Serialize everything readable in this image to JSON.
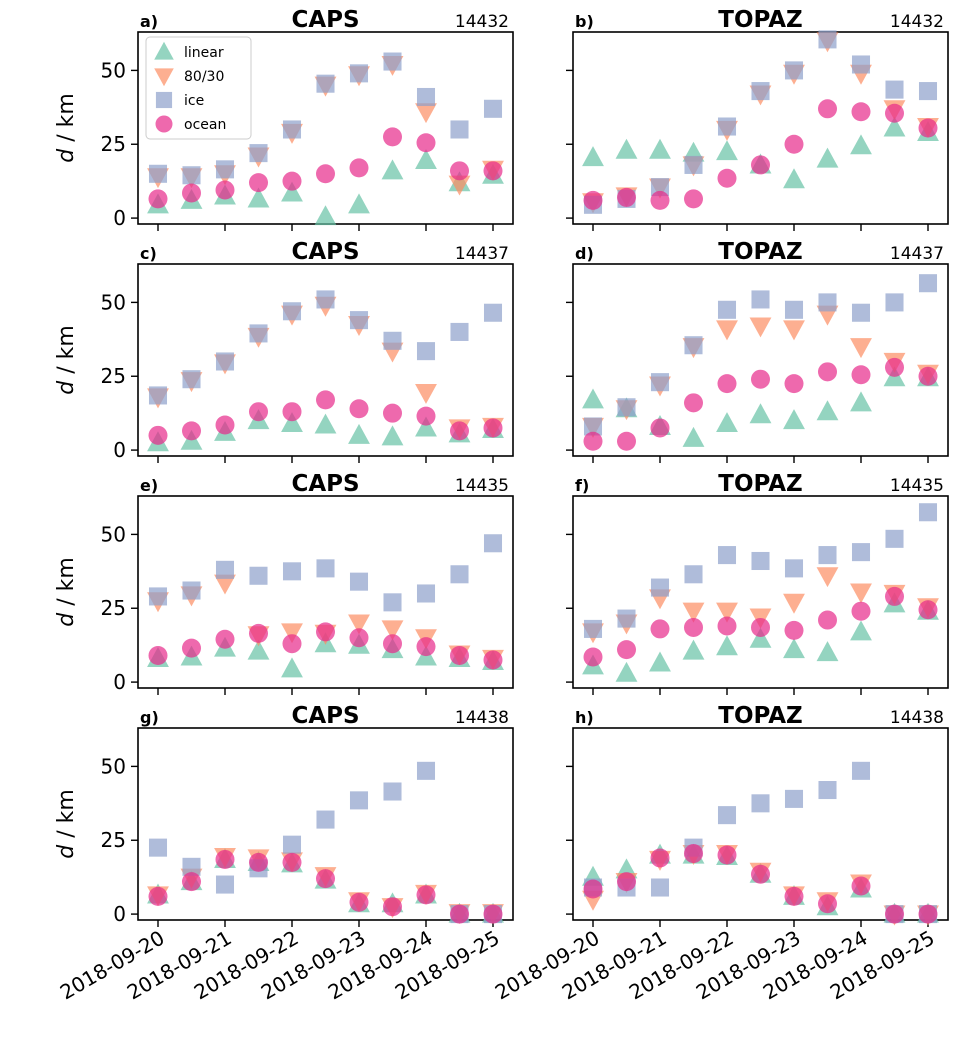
{
  "chart_data": {
    "type": "scatter",
    "x_dates": [
      "2018-09-20",
      "2018-09-20 12h",
      "2018-09-21",
      "2018-09-21 12h",
      "2018-09-22",
      "2018-09-22 12h",
      "2018-09-23",
      "2018-09-23 12h",
      "2018-09-24",
      "2018-09-24 12h",
      "2018-09-25"
    ],
    "x_ticks": [
      "2018-09-20",
      "2018-09-21",
      "2018-09-22",
      "2018-09-23",
      "2018-09-24",
      "2018-09-25"
    ],
    "ylim": [
      -2,
      63
    ],
    "y_ticks": [
      0,
      25,
      50
    ],
    "ylabel_var": "d",
    "ylabel_unit": " / km",
    "legend": {
      "placement": "upper-left",
      "panel": "a"
    },
    "series_styles": [
      {
        "name": "linear",
        "color": "#66c2a5",
        "marker": "triangle-up"
      },
      {
        "name": "80/30",
        "color": "#fc8d62",
        "marker": "triangle-down"
      },
      {
        "name": "ice",
        "color": "#8da0cb",
        "marker": "square"
      },
      {
        "name": "ocean",
        "color": "#e7298a",
        "marker": "circle"
      }
    ],
    "panels": [
      {
        "letter": "a)",
        "title": "CAPS",
        "id": "14432",
        "series": [
          {
            "name": "linear",
            "values": [
              4.5,
              6,
              7.5,
              6.5,
              8.5,
              0.5,
              4.5,
              16,
              19.5,
              12,
              14.5
            ]
          },
          {
            "name": "80/30",
            "values": [
              14,
              14,
              15,
              21,
              29,
              45,
              48.5,
              52,
              36,
              11.5,
              16.5
            ]
          },
          {
            "name": "ice",
            "values": [
              15,
              14.5,
              16.5,
              22,
              30,
              45.5,
              49,
              53,
              41,
              30,
              37
            ]
          },
          {
            "name": "ocean",
            "values": [
              6.5,
              8.5,
              9.5,
              12,
              12.5,
              15,
              17,
              27.5,
              25.5,
              16,
              16
            ]
          }
        ]
      },
      {
        "letter": "b)",
        "title": "TOPAZ",
        "id": "14432",
        "series": [
          {
            "name": "linear",
            "values": [
              20.5,
              23,
              23,
              22,
              22.5,
              18,
              13,
              20,
              24.5,
              30.5,
              29
            ]
          },
          {
            "name": "80/30",
            "values": [
              5.5,
              7.5,
              10.5,
              18,
              30,
              42,
              49,
              60,
              49,
              37,
              31
            ]
          },
          {
            "name": "ice",
            "values": [
              4.5,
              6.5,
              10.5,
              18,
              31,
              43,
              50,
              60.5,
              52,
              43.5,
              43
            ]
          },
          {
            "name": "ocean",
            "values": [
              6,
              7,
              6,
              6.5,
              13.5,
              18,
              25,
              37,
              36,
              35.5,
              30.5
            ]
          }
        ]
      },
      {
        "letter": "c)",
        "title": "CAPS",
        "id": "14437",
        "series": [
          {
            "name": "linear",
            "values": [
              2.5,
              3,
              6,
              10,
              9,
              8.5,
              5,
              4.5,
              7.5,
              5.5,
              7
            ]
          },
          {
            "name": "80/30",
            "values": [
              18,
              23.5,
              29.5,
              38.5,
              46,
              49,
              42.5,
              33.5,
              19.5,
              7.5,
              8
            ]
          },
          {
            "name": "ice",
            "values": [
              18.5,
              24,
              30,
              39.5,
              47,
              51,
              44,
              37,
              33.5,
              40,
              46.5
            ]
          },
          {
            "name": "ocean",
            "values": [
              5,
              6.5,
              8.5,
              13,
              13,
              17,
              14,
              12.5,
              11.5,
              6.5,
              7.5
            ]
          }
        ]
      },
      {
        "letter": "d)",
        "title": "TOPAZ",
        "id": "14437",
        "series": [
          {
            "name": "linear",
            "values": [
              17,
              14,
              8,
              4,
              9,
              12,
              10,
              13,
              16,
              24.5,
              24.5
            ]
          },
          {
            "name": "80/30",
            "values": [
              8,
              14,
              22,
              35,
              41,
              42,
              41,
              46,
              35,
              30,
              26
            ]
          },
          {
            "name": "ice",
            "values": [
              8,
              14.5,
              23,
              35.5,
              47.5,
              51,
              47.5,
              50,
              46.5,
              50,
              56.5
            ]
          },
          {
            "name": "ocean",
            "values": [
              3,
              3,
              7.5,
              16,
              22.5,
              24,
              22.5,
              26.5,
              25.5,
              28,
              25
            ]
          }
        ]
      },
      {
        "letter": "e)",
        "title": "CAPS",
        "id": "14435",
        "series": [
          {
            "name": "linear",
            "values": [
              8,
              8.5,
              11.5,
              10.5,
              4.5,
              13,
              12.5,
              11,
              8.5,
              8,
              7
            ]
          },
          {
            "name": "80/30",
            "values": [
              27.5,
              29.5,
              33.5,
              16,
              17,
              16.5,
              20,
              18,
              15,
              9.5,
              8
            ]
          },
          {
            "name": "ice",
            "values": [
              29,
              31,
              38,
              36,
              37.5,
              38.5,
              34,
              27,
              30,
              36.5,
              47
            ]
          },
          {
            "name": "ocean",
            "values": [
              9,
              11.5,
              14.5,
              16.5,
              13,
              17,
              15,
              13,
              12,
              9,
              7.5
            ]
          }
        ]
      },
      {
        "letter": "f)",
        "title": "TOPAZ",
        "id": "14435",
        "series": [
          {
            "name": "linear",
            "values": [
              5.5,
              3,
              6.5,
              10.5,
              12,
              14.5,
              11,
              10,
              17,
              26.5,
              24
            ]
          },
          {
            "name": "80/30",
            "values": [
              17,
              20,
              28.5,
              24,
              24,
              22,
              27,
              36,
              30.5,
              30,
              25.5
            ]
          },
          {
            "name": "ice",
            "values": [
              18,
              21.5,
              32,
              36.5,
              43,
              41,
              38.5,
              43,
              44,
              48.5,
              57.5
            ]
          },
          {
            "name": "ocean",
            "values": [
              8.5,
              11,
              18,
              18.5,
              19,
              18.5,
              17.5,
              21,
              24,
              29,
              24.5
            ]
          }
        ]
      },
      {
        "letter": "g)",
        "title": "CAPS",
        "id": "14438",
        "series": [
          {
            "name": "linear",
            "values": [
              6.5,
              11,
              18.5,
              17.5,
              17,
              11.5,
              3.5,
              3.5,
              6.5,
              0,
              0
            ]
          },
          {
            "name": "80/30",
            "values": [
              6.5,
              12.5,
              19.5,
              19,
              18,
              13,
              4.5,
              2.5,
              7,
              0.5,
              0.5
            ]
          },
          {
            "name": "ice",
            "values": [
              22.5,
              16,
              10,
              15.5,
              23.5,
              32,
              38.5,
              41.5,
              48.5,
              0,
              0
            ]
          },
          {
            "name": "ocean",
            "values": [
              6,
              11,
              18.5,
              17.5,
              17.5,
              12,
              4,
              2.5,
              6.5,
              0,
              0
            ]
          }
        ]
      },
      {
        "letter": "h)",
        "title": "TOPAZ",
        "id": "14438",
        "series": [
          {
            "name": "linear",
            "values": [
              12.5,
              15,
              20,
              20,
              19.5,
              13.5,
              6,
              2.5,
              8.5,
              0,
              0
            ]
          },
          {
            "name": "80/30",
            "values": [
              5,
              11,
              18.5,
              20.5,
              20.5,
              14.5,
              6.5,
              4.5,
              10.5,
              0,
              0
            ]
          },
          {
            "name": "ice",
            "values": [
              9,
              9,
              9,
              22.5,
              33.5,
              37.5,
              39,
              42,
              48.5,
              0,
              0
            ]
          },
          {
            "name": "ocean",
            "values": [
              8.5,
              11,
              19,
              20.5,
              20,
              13.5,
              6,
              3.5,
              9.5,
              0,
              0
            ]
          }
        ]
      }
    ]
  }
}
